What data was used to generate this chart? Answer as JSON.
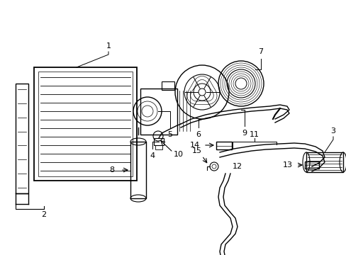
{
  "background_color": "#ffffff",
  "line_color": "#000000",
  "line_width": 1.0,
  "label_fontsize": 8,
  "fig_w": 4.89,
  "fig_h": 3.6,
  "dpi": 100,
  "xlim": [
    0,
    489
  ],
  "ylim": [
    0,
    360
  ]
}
